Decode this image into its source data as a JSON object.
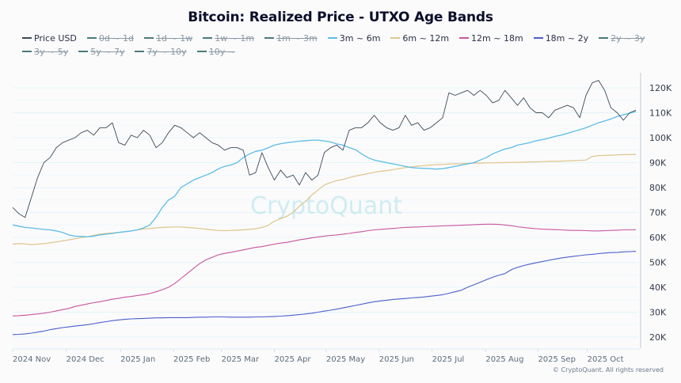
{
  "title": "Bitcoin: Realized Price - UTXO Age Bands",
  "watermark": "CryptoQuant",
  "copyright": "© CryptoQuant. All rights reserved",
  "legend": [
    {
      "label": "Price USD",
      "color": "#3c4a57",
      "hidden": false
    },
    {
      "label": "0d ~ 1d",
      "color": "#4a7a7a",
      "hidden": true
    },
    {
      "label": "1d ~ 1w",
      "color": "#4a7a7a",
      "hidden": true
    },
    {
      "label": "1w ~ 1m",
      "color": "#4a7a7a",
      "hidden": true
    },
    {
      "label": "1m ~ 3m",
      "color": "#4a7a7a",
      "hidden": true
    },
    {
      "label": "3m ~ 6m",
      "color": "#5bbde6",
      "hidden": false
    },
    {
      "label": "6m ~ 12m",
      "color": "#e0c48c",
      "hidden": false
    },
    {
      "label": "12m ~ 18m",
      "color": "#c9559e",
      "hidden": false
    },
    {
      "label": "18m ~ 2y",
      "color": "#4a5fc9",
      "hidden": false
    },
    {
      "label": "2y ~ 3y",
      "color": "#4a7a7a",
      "hidden": true
    },
    {
      "label": "3y ~ 5y",
      "color": "#4a7a7a",
      "hidden": true
    },
    {
      "label": "5y ~ 7y",
      "color": "#4a7a7a",
      "hidden": true
    },
    {
      "label": "7y ~ 10y",
      "color": "#4a7a7a",
      "hidden": true
    },
    {
      "label": "10y ~",
      "color": "#4a7a7a",
      "hidden": true
    }
  ],
  "chart_data": {
    "type": "line",
    "title": "Bitcoin: Realized Price - UTXO Age Bands",
    "xlabel": "",
    "ylabel": "",
    "ylim": [
      17000,
      127000
    ],
    "y_ticks": [
      "120K",
      "110K",
      "100K",
      "90K",
      "80K",
      "70K",
      "60K",
      "50K",
      "40K",
      "30K",
      "20K"
    ],
    "y_tick_values": [
      120000,
      110000,
      100000,
      90000,
      80000,
      70000,
      60000,
      50000,
      40000,
      30000,
      20000
    ],
    "x_ticks": [
      "2024 Nov",
      "2024 Dec",
      "2025 Jan",
      "2025 Feb",
      "2025 Mar",
      "2025 Apr",
      "2025 May",
      "2025 Jun",
      "2025 Jul",
      "2025 Aug",
      "2025 Sep",
      "2025 Oct"
    ],
    "x_tick_pos": [
      0.0,
      0.086,
      0.173,
      0.258,
      0.335,
      0.42,
      0.503,
      0.588,
      0.673,
      0.759,
      0.843,
      0.922
    ],
    "grid": true,
    "legend_position": "top",
    "x": [
      0.0,
      0.01,
      0.02,
      0.03,
      0.04,
      0.05,
      0.06,
      0.07,
      0.08,
      0.09,
      0.1,
      0.11,
      0.12,
      0.13,
      0.14,
      0.15,
      0.16,
      0.17,
      0.18,
      0.19,
      0.2,
      0.21,
      0.22,
      0.23,
      0.24,
      0.25,
      0.26,
      0.27,
      0.28,
      0.29,
      0.3,
      0.31,
      0.32,
      0.33,
      0.34,
      0.35,
      0.36,
      0.37,
      0.38,
      0.39,
      0.4,
      0.41,
      0.42,
      0.43,
      0.44,
      0.45,
      0.46,
      0.47,
      0.48,
      0.49,
      0.5,
      0.51,
      0.52,
      0.53,
      0.54,
      0.55,
      0.56,
      0.57,
      0.58,
      0.59,
      0.6,
      0.61,
      0.62,
      0.63,
      0.64,
      0.65,
      0.66,
      0.67,
      0.68,
      0.69,
      0.7,
      0.71,
      0.72,
      0.73,
      0.74,
      0.75,
      0.76,
      0.77,
      0.78,
      0.79,
      0.8,
      0.81,
      0.82,
      0.83,
      0.84,
      0.85,
      0.86,
      0.87,
      0.88,
      0.89,
      0.9,
      0.91,
      0.92,
      0.93,
      0.94,
      0.95,
      0.96,
      0.97,
      0.98,
      0.99,
      1.0
    ],
    "series": [
      {
        "name": "Price USD",
        "color": "#3c4a57",
        "width": 0.9,
        "values": [
          72,
          69.5,
          68,
          76,
          84,
          90,
          92,
          96,
          98,
          99,
          100,
          102,
          103,
          101,
          104,
          104,
          106,
          98,
          97,
          101,
          100,
          103,
          101,
          96,
          98,
          102,
          105,
          104,
          102,
          100,
          102,
          100,
          98,
          97,
          95,
          96,
          96,
          95,
          85,
          86,
          94,
          88,
          83,
          87,
          84,
          85,
          81,
          86,
          83,
          85,
          94,
          96,
          97,
          95,
          103,
          104,
          104,
          106,
          109,
          106,
          104,
          103,
          104,
          109,
          105,
          106,
          103,
          104,
          106,
          108,
          118,
          117,
          118,
          119,
          117,
          119,
          117,
          114,
          115,
          119,
          116,
          113,
          116,
          112,
          110,
          110,
          108,
          111,
          112,
          113,
          112,
          108,
          117,
          122,
          123,
          119,
          112,
          110,
          107,
          110,
          111
        ]
      },
      {
        "name": "3m ~ 6m",
        "color": "#5bbde6",
        "width": 1.3,
        "values": [
          65,
          64.5,
          64,
          63.8,
          63.5,
          63.2,
          63,
          62.6,
          62,
          61,
          60.5,
          60.4,
          60.3,
          60.5,
          61,
          61.3,
          61.6,
          62,
          62.3,
          62.6,
          63,
          63.8,
          65,
          68,
          72,
          75,
          76.5,
          80,
          81.5,
          83,
          84,
          85,
          86,
          87.5,
          88.5,
          89,
          90,
          92,
          93.5,
          94.5,
          95,
          96,
          97,
          97.6,
          98,
          98.3,
          98.6,
          98.8,
          99,
          99,
          98.7,
          98.3,
          97.5,
          97,
          96,
          95.2,
          93.5,
          92,
          91,
          90.5,
          90,
          89.5,
          89,
          88.5,
          88,
          87.8,
          87.7,
          87.6,
          87.4,
          87.6,
          88,
          88.5,
          89,
          89.5,
          90,
          91,
          92,
          93.5,
          94.5,
          95.5,
          96,
          97,
          97.5,
          98,
          98.8,
          99.2,
          99.8,
          100.5,
          101,
          101.7,
          102.5,
          103.2,
          104,
          105,
          106,
          106.7,
          107.5,
          108.5,
          109.2,
          109.8,
          110.5
        ]
      },
      {
        "name": "6m ~ 12m",
        "color": "#e0c48c",
        "width": 1.2,
        "values": [
          57.3,
          57.5,
          57.4,
          57.1,
          57.3,
          57.5,
          57.8,
          58.2,
          58.6,
          59,
          59.5,
          59.9,
          60.3,
          60.8,
          61.3,
          61.6,
          61.8,
          62,
          62.3,
          62.6,
          63,
          63.4,
          63.6,
          63.8,
          64,
          64.1,
          64.2,
          64.2,
          64,
          63.8,
          63.6,
          63.3,
          63,
          62.8,
          62.7,
          62.8,
          62.9,
          63,
          63.2,
          63.5,
          64,
          64.8,
          66.5,
          67.5,
          68.5,
          70,
          72.5,
          74.5,
          77,
          79,
          81,
          82,
          82.8,
          83.2,
          84,
          84.6,
          85.1,
          85.6,
          86.1,
          86.5,
          86.8,
          87.2,
          87.6,
          88,
          88.3,
          88.6,
          88.8,
          89,
          89.2,
          89.3,
          89.4,
          89.5,
          89.6,
          89.7,
          89.8,
          89.8,
          89.9,
          89.9,
          90,
          90,
          90.1,
          90.1,
          90.2,
          90.3,
          90.3,
          90.4,
          90.5,
          90.5,
          90.6,
          90.7,
          90.8,
          90.9,
          91,
          92.5,
          92.8,
          92.9,
          93,
          93.1,
          93.2,
          93.2,
          93.3
        ]
      },
      {
        "name": "12m ~ 18m",
        "color": "#c9559e",
        "width": 1.1,
        "values": [
          28.5,
          28.6,
          28.8,
          29,
          29.3,
          29.6,
          30,
          30.5,
          31,
          31.5,
          32.3,
          32.8,
          33.3,
          33.8,
          34.2,
          34.7,
          35.2,
          35.6,
          36,
          36.3,
          36.7,
          37,
          37.5,
          38.2,
          39,
          40,
          41.5,
          43.5,
          45.5,
          47.5,
          49.5,
          51,
          52,
          53,
          53.6,
          54,
          54.5,
          55,
          55.5,
          56,
          56.3,
          56.8,
          57.3,
          57.7,
          58,
          58.5,
          59,
          59.4,
          59.8,
          60.2,
          60.5,
          60.8,
          61,
          61.3,
          61.6,
          62,
          62.3,
          62.7,
          63,
          63.2,
          63.4,
          63.6,
          63.8,
          64,
          64.1,
          64.2,
          64.3,
          64.4,
          64.5,
          64.6,
          64.7,
          64.8,
          64.9,
          65,
          65.1,
          65.2,
          65.3,
          65.3,
          65.2,
          65,
          64.7,
          64.3,
          64,
          63.7,
          63.5,
          63.3,
          63.2,
          63.1,
          63,
          62.9,
          62.8,
          62.8,
          62.7,
          62.6,
          62.6,
          62.7,
          62.8,
          62.9,
          63,
          63,
          63.1
        ]
      },
      {
        "name": "18m ~ 2y",
        "color": "#4a5fc9",
        "width": 1.1,
        "values": [
          21,
          21.1,
          21.3,
          21.6,
          22,
          22.4,
          23,
          23.4,
          23.8,
          24.1,
          24.4,
          24.7,
          25,
          25.4,
          25.8,
          26.2,
          26.6,
          26.9,
          27.1,
          27.3,
          27.4,
          27.5,
          27.6,
          27.7,
          27.7,
          27.8,
          27.8,
          27.8,
          27.8,
          27.9,
          28,
          28,
          28.1,
          28.1,
          28.1,
          28,
          28,
          28,
          28,
          28.1,
          28.1,
          28.2,
          28.3,
          28.4,
          28.6,
          28.8,
          29,
          29.3,
          29.6,
          30,
          30.4,
          30.8,
          31.2,
          31.7,
          32.2,
          32.7,
          33.2,
          33.7,
          34.2,
          34.5,
          34.8,
          35.1,
          35.3,
          35.5,
          35.7,
          35.9,
          36.1,
          36.4,
          36.7,
          37,
          37.6,
          38.2,
          38.8,
          40,
          41,
          42,
          43,
          44,
          44.8,
          45.5,
          47,
          48,
          48.7,
          49.3,
          49.8,
          50.3,
          50.8,
          51.3,
          51.7,
          52.1,
          52.4,
          52.7,
          53,
          53.2,
          53.5,
          53.7,
          53.9,
          54,
          54.2,
          54.3,
          54.4
        ]
      }
    ]
  }
}
